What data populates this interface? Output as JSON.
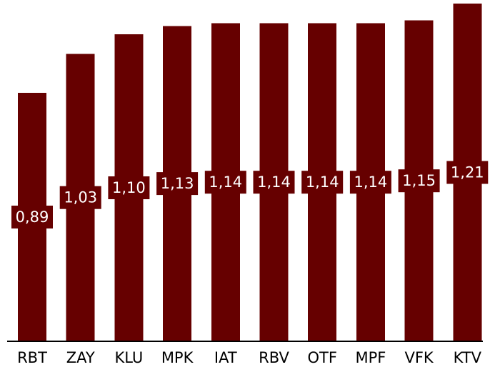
{
  "chart_data": {
    "type": "bar",
    "categories": [
      "RBT",
      "ZAY",
      "KLU",
      "MPK",
      "IAT",
      "RBV",
      "OTF",
      "MPF",
      "VFK",
      "KTV"
    ],
    "values": [
      0.89,
      1.03,
      1.1,
      1.13,
      1.14,
      1.14,
      1.14,
      1.14,
      1.15,
      1.21
    ],
    "data_labels": [
      "0,89",
      "1,03",
      "1,10",
      "1,13",
      "1,14",
      "1,14",
      "1,14",
      "1,14",
      "1,15",
      "1,21"
    ],
    "title": "",
    "xlabel": "",
    "ylabel": "",
    "ylim": [
      0,
      1.21
    ],
    "grid": false,
    "legend": "none",
    "colors": {
      "bar": "#660000",
      "label_bg": "#660000",
      "label_text": "#ffffff",
      "axis": "#000000",
      "tick_text": "#000000"
    }
  }
}
